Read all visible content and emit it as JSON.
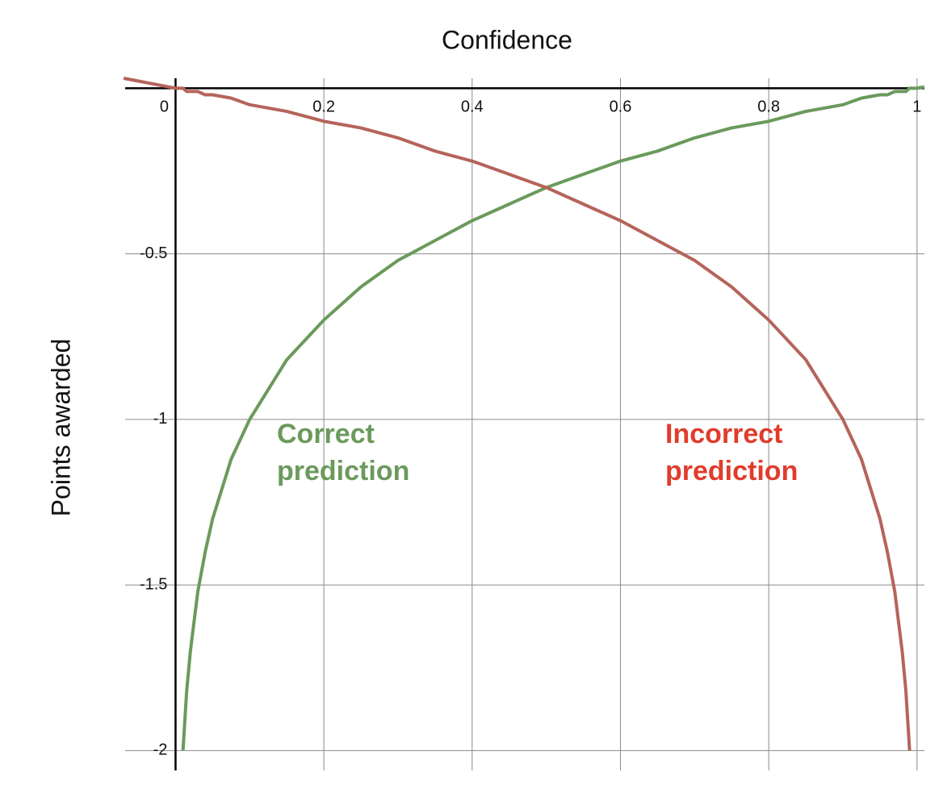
{
  "chart_data": {
    "type": "line",
    "title": "Confidence",
    "y_label": "Points awarded",
    "x": [
      -0.07,
      0,
      0.01,
      0.015,
      0.02,
      0.03,
      0.04,
      0.05,
      0.075,
      0.1,
      0.15,
      0.2,
      0.25,
      0.3,
      0.35,
      0.4,
      0.45,
      0.5,
      0.55,
      0.6,
      0.65,
      0.7,
      0.75,
      0.8,
      0.85,
      0.9,
      0.925,
      0.95,
      0.96,
      0.97,
      0.98,
      0.985,
      0.99,
      1.0,
      1.01
    ],
    "series": [
      {
        "name": "Correct prediction",
        "color": "#6a9a5c",
        "values": [
          null,
          null,
          -2,
          -1.82,
          -1.7,
          -1.52,
          -1.4,
          -1.3,
          -1.12,
          -1,
          -0.82,
          -0.7,
          -0.6,
          -0.52,
          -0.46,
          -0.4,
          -0.35,
          -0.3,
          -0.26,
          -0.22,
          -0.19,
          -0.15,
          -0.12,
          -0.1,
          -0.07,
          -0.05,
          -0.03,
          -0.02,
          -0.02,
          -0.01,
          -0.01,
          -0.01,
          0,
          0,
          0.004
        ]
      },
      {
        "name": "Incorrect prediction",
        "color": "#b5645a",
        "values": [
          0.03,
          0,
          0,
          -0.01,
          -0.01,
          -0.01,
          -0.02,
          -0.02,
          -0.03,
          -0.05,
          -0.07,
          -0.1,
          -0.12,
          -0.15,
          -0.19,
          -0.22,
          -0.26,
          -0.3,
          -0.35,
          -0.4,
          -0.46,
          -0.52,
          -0.6,
          -0.7,
          -0.82,
          -1,
          -1.12,
          -1.3,
          -1.4,
          -1.52,
          -1.7,
          -1.82,
          -2,
          null,
          null
        ]
      }
    ],
    "annotations": [
      {
        "lines": [
          "Correct",
          "prediction"
        ],
        "color": "#6a9a5c"
      },
      {
        "lines": [
          "Incorrect",
          "prediction"
        ],
        "color": "#e03c2c"
      }
    ],
    "xlim": [
      -0.068,
      1.01
    ],
    "ylim": [
      -2.06,
      0.03
    ],
    "xticks": [
      0,
      0.2,
      0.4,
      0.6,
      0.8,
      1
    ],
    "yticks": [
      -2,
      -1.5,
      -1,
      -0.5
    ],
    "grid": true
  }
}
